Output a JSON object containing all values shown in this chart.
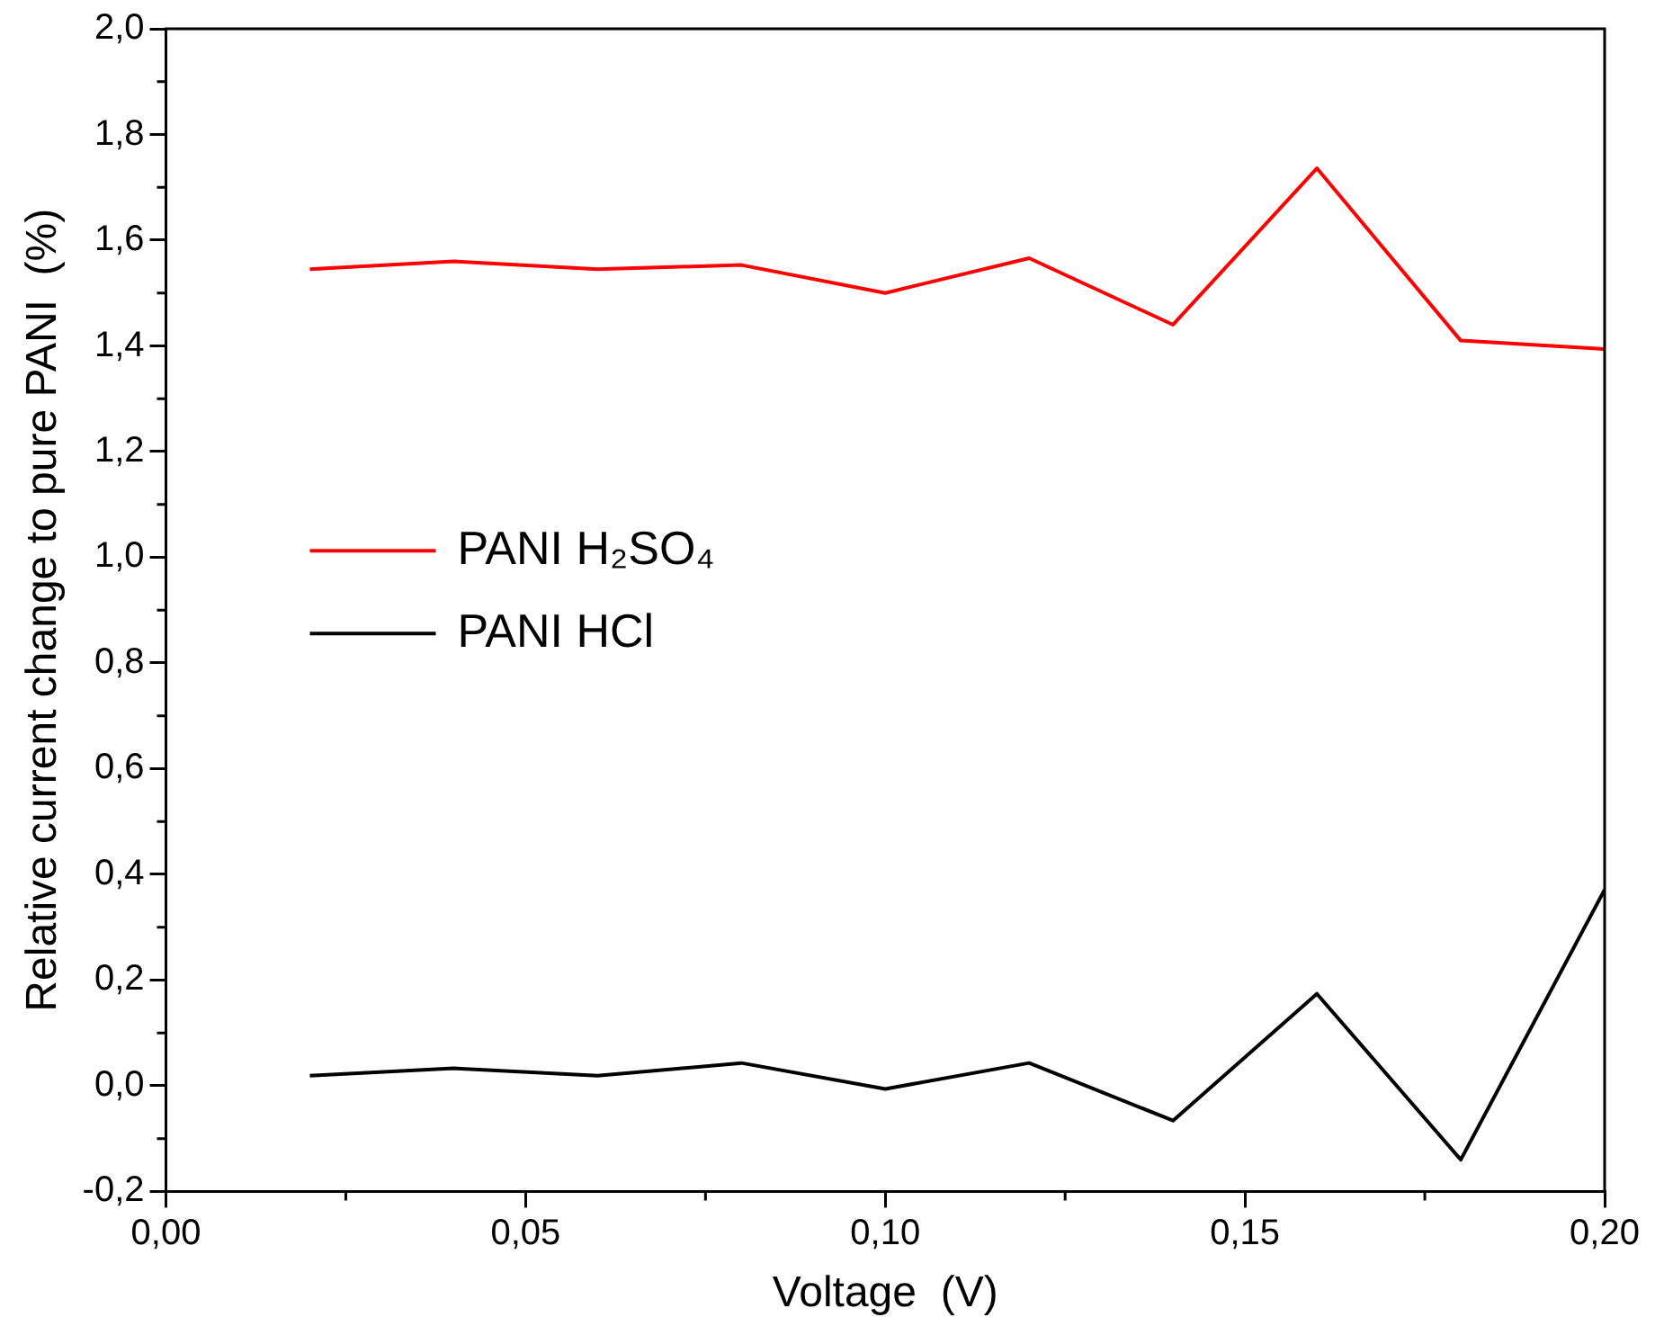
{
  "chart_data": {
    "type": "line",
    "xlabel": "Voltage  (V)",
    "ylabel": "Relative current change to pure PANI  (%)",
    "x": [
      0.02,
      0.04,
      0.06,
      0.08,
      0.1,
      0.12,
      0.14,
      0.16,
      0.18,
      0.2
    ],
    "series": [
      {
        "name": "PANI H₂SO₄",
        "color": "#ff0000",
        "values": [
          1.545,
          1.56,
          1.545,
          1.553,
          1.5,
          1.566,
          1.44,
          1.736,
          1.41,
          1.394
        ]
      },
      {
        "name": "PANI HCl",
        "color": "#000000",
        "values": [
          0.019,
          0.033,
          0.019,
          0.043,
          -0.006,
          0.043,
          -0.066,
          0.174,
          -0.14,
          0.371
        ]
      }
    ],
    "xlim": [
      0,
      0.2
    ],
    "xticks": [
      {
        "value": 0,
        "label": "0,00"
      },
      {
        "value": 0.05,
        "label": "0,05"
      },
      {
        "value": 0.1,
        "label": "0,10"
      },
      {
        "value": 0.15,
        "label": "0,15"
      },
      {
        "value": 0.2,
        "label": "0,20"
      }
    ],
    "ylim": [
      -0.2,
      2.0
    ],
    "yticks": [
      {
        "value": -0.2,
        "label": "-0,2"
      },
      {
        "value": 0,
        "label": "0,0"
      },
      {
        "value": 0.2,
        "label": "0,2"
      },
      {
        "value": 0.4,
        "label": "0,4"
      },
      {
        "value": 0.6,
        "label": "0,6"
      },
      {
        "value": 0.8,
        "label": "0,8"
      },
      {
        "value": 1.0,
        "label": "1,0"
      },
      {
        "value": 1.2,
        "label": "1,2"
      },
      {
        "value": 1.4,
        "label": "1,4"
      },
      {
        "value": 1.6,
        "label": "1,6"
      },
      {
        "value": 1.8,
        "label": "1,8"
      },
      {
        "value": 2.0,
        "label": "2,0"
      }
    ],
    "grid": false,
    "legend": "left",
    "marker": "none",
    "line_style": "solid"
  }
}
